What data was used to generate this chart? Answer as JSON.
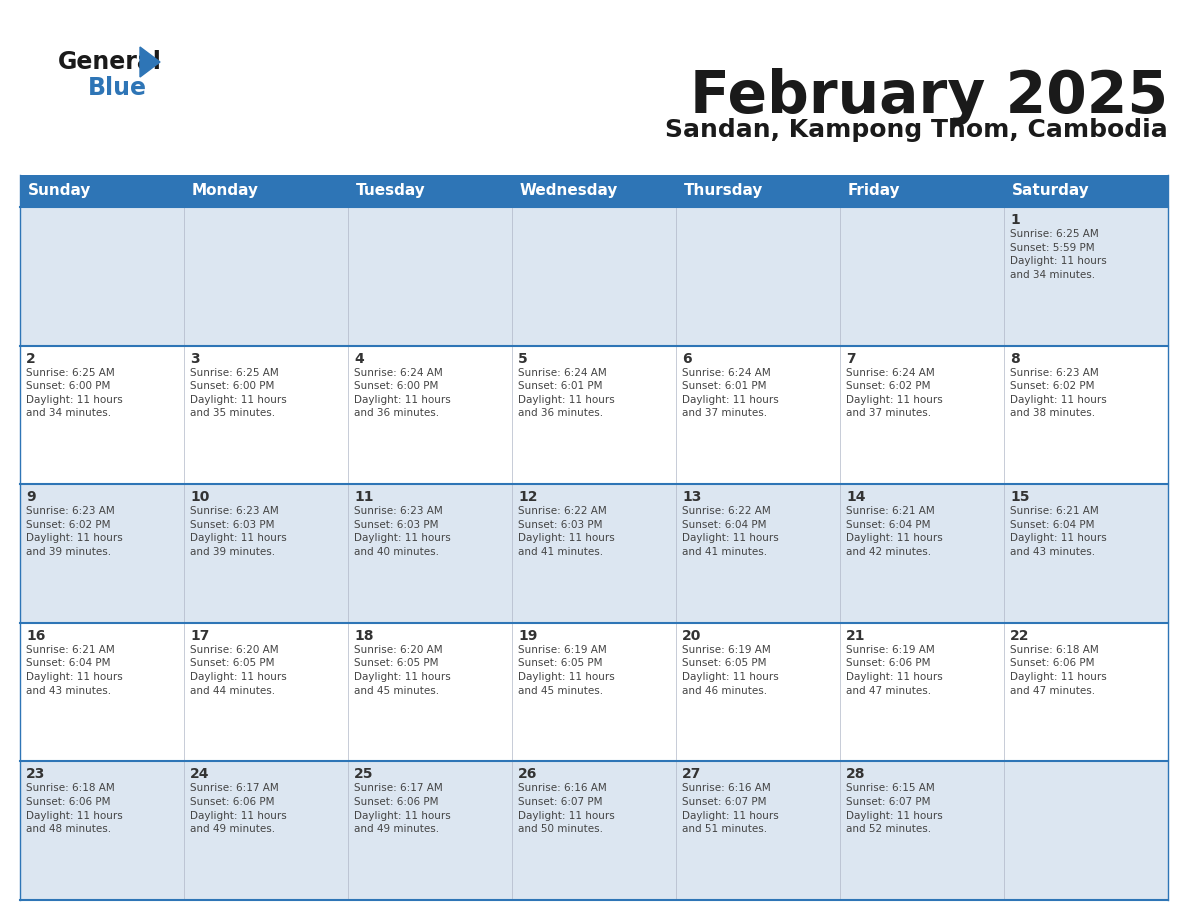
{
  "title": "February 2025",
  "subtitle": "Sandan, Kampong Thom, Cambodia",
  "header_bg": "#2e75b6",
  "header_text_color": "#ffffff",
  "day_names": [
    "Sunday",
    "Monday",
    "Tuesday",
    "Wednesday",
    "Thursday",
    "Friday",
    "Saturday"
  ],
  "cell_bg_odd": "#dce6f1",
  "cell_bg_even": "#ffffff",
  "grid_line_color": "#2e75b6",
  "date_color": "#333333",
  "info_color": "#444444",
  "title_fontsize": 42,
  "subtitle_fontsize": 18,
  "header_fontsize": 11,
  "day_num_fontsize": 10,
  "info_fontsize": 7.5,
  "weeks": [
    [
      {
        "day": null,
        "text": ""
      },
      {
        "day": null,
        "text": ""
      },
      {
        "day": null,
        "text": ""
      },
      {
        "day": null,
        "text": ""
      },
      {
        "day": null,
        "text": ""
      },
      {
        "day": null,
        "text": ""
      },
      {
        "day": 1,
        "text": "Sunrise: 6:25 AM\nSunset: 5:59 PM\nDaylight: 11 hours\nand 34 minutes."
      }
    ],
    [
      {
        "day": 2,
        "text": "Sunrise: 6:25 AM\nSunset: 6:00 PM\nDaylight: 11 hours\nand 34 minutes."
      },
      {
        "day": 3,
        "text": "Sunrise: 6:25 AM\nSunset: 6:00 PM\nDaylight: 11 hours\nand 35 minutes."
      },
      {
        "day": 4,
        "text": "Sunrise: 6:24 AM\nSunset: 6:00 PM\nDaylight: 11 hours\nand 36 minutes."
      },
      {
        "day": 5,
        "text": "Sunrise: 6:24 AM\nSunset: 6:01 PM\nDaylight: 11 hours\nand 36 minutes."
      },
      {
        "day": 6,
        "text": "Sunrise: 6:24 AM\nSunset: 6:01 PM\nDaylight: 11 hours\nand 37 minutes."
      },
      {
        "day": 7,
        "text": "Sunrise: 6:24 AM\nSunset: 6:02 PM\nDaylight: 11 hours\nand 37 minutes."
      },
      {
        "day": 8,
        "text": "Sunrise: 6:23 AM\nSunset: 6:02 PM\nDaylight: 11 hours\nand 38 minutes."
      }
    ],
    [
      {
        "day": 9,
        "text": "Sunrise: 6:23 AM\nSunset: 6:02 PM\nDaylight: 11 hours\nand 39 minutes."
      },
      {
        "day": 10,
        "text": "Sunrise: 6:23 AM\nSunset: 6:03 PM\nDaylight: 11 hours\nand 39 minutes."
      },
      {
        "day": 11,
        "text": "Sunrise: 6:23 AM\nSunset: 6:03 PM\nDaylight: 11 hours\nand 40 minutes."
      },
      {
        "day": 12,
        "text": "Sunrise: 6:22 AM\nSunset: 6:03 PM\nDaylight: 11 hours\nand 41 minutes."
      },
      {
        "day": 13,
        "text": "Sunrise: 6:22 AM\nSunset: 6:04 PM\nDaylight: 11 hours\nand 41 minutes."
      },
      {
        "day": 14,
        "text": "Sunrise: 6:21 AM\nSunset: 6:04 PM\nDaylight: 11 hours\nand 42 minutes."
      },
      {
        "day": 15,
        "text": "Sunrise: 6:21 AM\nSunset: 6:04 PM\nDaylight: 11 hours\nand 43 minutes."
      }
    ],
    [
      {
        "day": 16,
        "text": "Sunrise: 6:21 AM\nSunset: 6:04 PM\nDaylight: 11 hours\nand 43 minutes."
      },
      {
        "day": 17,
        "text": "Sunrise: 6:20 AM\nSunset: 6:05 PM\nDaylight: 11 hours\nand 44 minutes."
      },
      {
        "day": 18,
        "text": "Sunrise: 6:20 AM\nSunset: 6:05 PM\nDaylight: 11 hours\nand 45 minutes."
      },
      {
        "day": 19,
        "text": "Sunrise: 6:19 AM\nSunset: 6:05 PM\nDaylight: 11 hours\nand 45 minutes."
      },
      {
        "day": 20,
        "text": "Sunrise: 6:19 AM\nSunset: 6:05 PM\nDaylight: 11 hours\nand 46 minutes."
      },
      {
        "day": 21,
        "text": "Sunrise: 6:19 AM\nSunset: 6:06 PM\nDaylight: 11 hours\nand 47 minutes."
      },
      {
        "day": 22,
        "text": "Sunrise: 6:18 AM\nSunset: 6:06 PM\nDaylight: 11 hours\nand 47 minutes."
      }
    ],
    [
      {
        "day": 23,
        "text": "Sunrise: 6:18 AM\nSunset: 6:06 PM\nDaylight: 11 hours\nand 48 minutes."
      },
      {
        "day": 24,
        "text": "Sunrise: 6:17 AM\nSunset: 6:06 PM\nDaylight: 11 hours\nand 49 minutes."
      },
      {
        "day": 25,
        "text": "Sunrise: 6:17 AM\nSunset: 6:06 PM\nDaylight: 11 hours\nand 49 minutes."
      },
      {
        "day": 26,
        "text": "Sunrise: 6:16 AM\nSunset: 6:07 PM\nDaylight: 11 hours\nand 50 minutes."
      },
      {
        "day": 27,
        "text": "Sunrise: 6:16 AM\nSunset: 6:07 PM\nDaylight: 11 hours\nand 51 minutes."
      },
      {
        "day": 28,
        "text": "Sunrise: 6:15 AM\nSunset: 6:07 PM\nDaylight: 11 hours\nand 52 minutes."
      },
      {
        "day": null,
        "text": ""
      }
    ]
  ]
}
